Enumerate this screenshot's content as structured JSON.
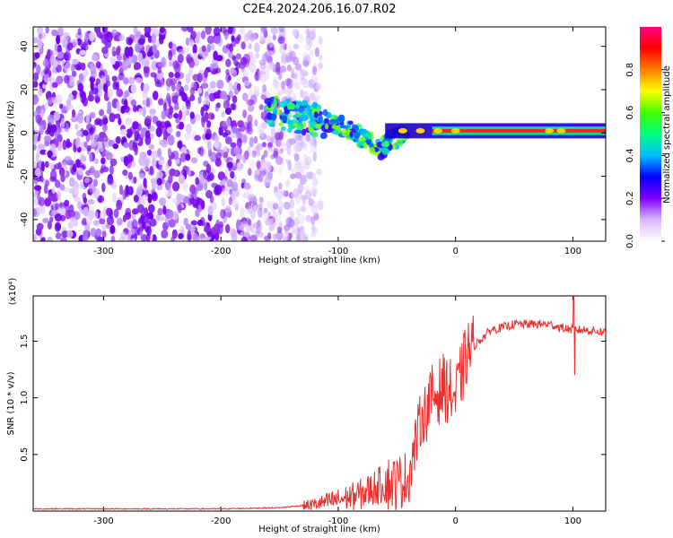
{
  "figure_title": "C2E4.2024.206.16.07.R02",
  "chart_data": [
    {
      "type": "heatmap",
      "title": "C2E4.2024.206.16.07.R02",
      "xlabel": "Height of straight line (km)",
      "ylabel": "Frequency (Hz)",
      "xlim": [
        -360,
        128
      ],
      "ylim": [
        -50,
        49
      ],
      "x_ticks": [
        -300,
        -200,
        -100,
        0,
        100
      ],
      "x_tick_labels": [
        "-300",
        "-200",
        "-100",
        "0",
        "100"
      ],
      "y_ticks": [
        40,
        20,
        0,
        -20,
        -40
      ],
      "y_tick_labels": [
        "40",
        "20",
        "0",
        "-20",
        "-40"
      ],
      "colorbar": {
        "label": "Normalized spectral amplitude",
        "range": [
          0,
          1
        ],
        "ticks": [
          0.0,
          0.2,
          0.4,
          0.6,
          0.8
        ],
        "tick_labels": [
          "0.0",
          "0.2",
          "0.4",
          "0.6",
          "0.8"
        ],
        "colors": [
          "#ffffff",
          "#d9b8ff",
          "#8000ff",
          "#0000ff",
          "#00bfff",
          "#00ff80",
          "#40ff00",
          "#ffff00",
          "#ff8000",
          "#ff0000",
          "#ff0080"
        ]
      },
      "noise_region_x": [
        -360,
        -140
      ],
      "signal_trace": {
        "x": [
          -160,
          -140,
          -120,
          -100,
          -80,
          -65,
          -55,
          -45,
          -30,
          -10,
          0,
          20,
          60,
          80,
          90,
          100,
          128
        ],
        "y": [
          10,
          8,
          6,
          4,
          -2,
          -8,
          -3,
          -1,
          0,
          1,
          1,
          1,
          1,
          1,
          1,
          1,
          1
        ]
      },
      "line_band": {
        "x": [
          -60,
          128
        ],
        "y": [
          -1,
          3
        ]
      }
    },
    {
      "type": "line",
      "xlabel": "Height of straight line (km)",
      "ylabel": "SNR (10 * v/v)",
      "y_multiplier": "(x10⁴)",
      "xlim": [
        -360,
        128
      ],
      "ylim": [
        0,
        1.9
      ],
      "x_ticks": [
        -300,
        -200,
        -100,
        0,
        100
      ],
      "x_tick_labels": [
        "-300",
        "-200",
        "-100",
        "0",
        "100"
      ],
      "y_ticks": [
        0.5,
        1.0,
        1.5
      ],
      "y_tick_labels": [
        "0.5",
        "1.0",
        "1.5"
      ],
      "series": [
        {
          "name": "SNR",
          "color": "#e8302f",
          "x": [
            -360,
            -300,
            -200,
            -150,
            -120,
            -100,
            -80,
            -60,
            -50,
            -40,
            -30,
            -20,
            -10,
            0,
            10,
            20,
            30,
            40,
            50,
            60,
            70,
            80,
            90,
            100,
            110,
            128
          ],
          "y": [
            0.02,
            0.02,
            0.02,
            0.03,
            0.06,
            0.1,
            0.15,
            0.25,
            0.25,
            0.3,
            0.8,
            1.0,
            1.1,
            1.0,
            1.4,
            1.5,
            1.6,
            1.62,
            1.65,
            1.65,
            1.65,
            1.65,
            1.62,
            1.6,
            1.6,
            1.58
          ]
        }
      ]
    }
  ]
}
